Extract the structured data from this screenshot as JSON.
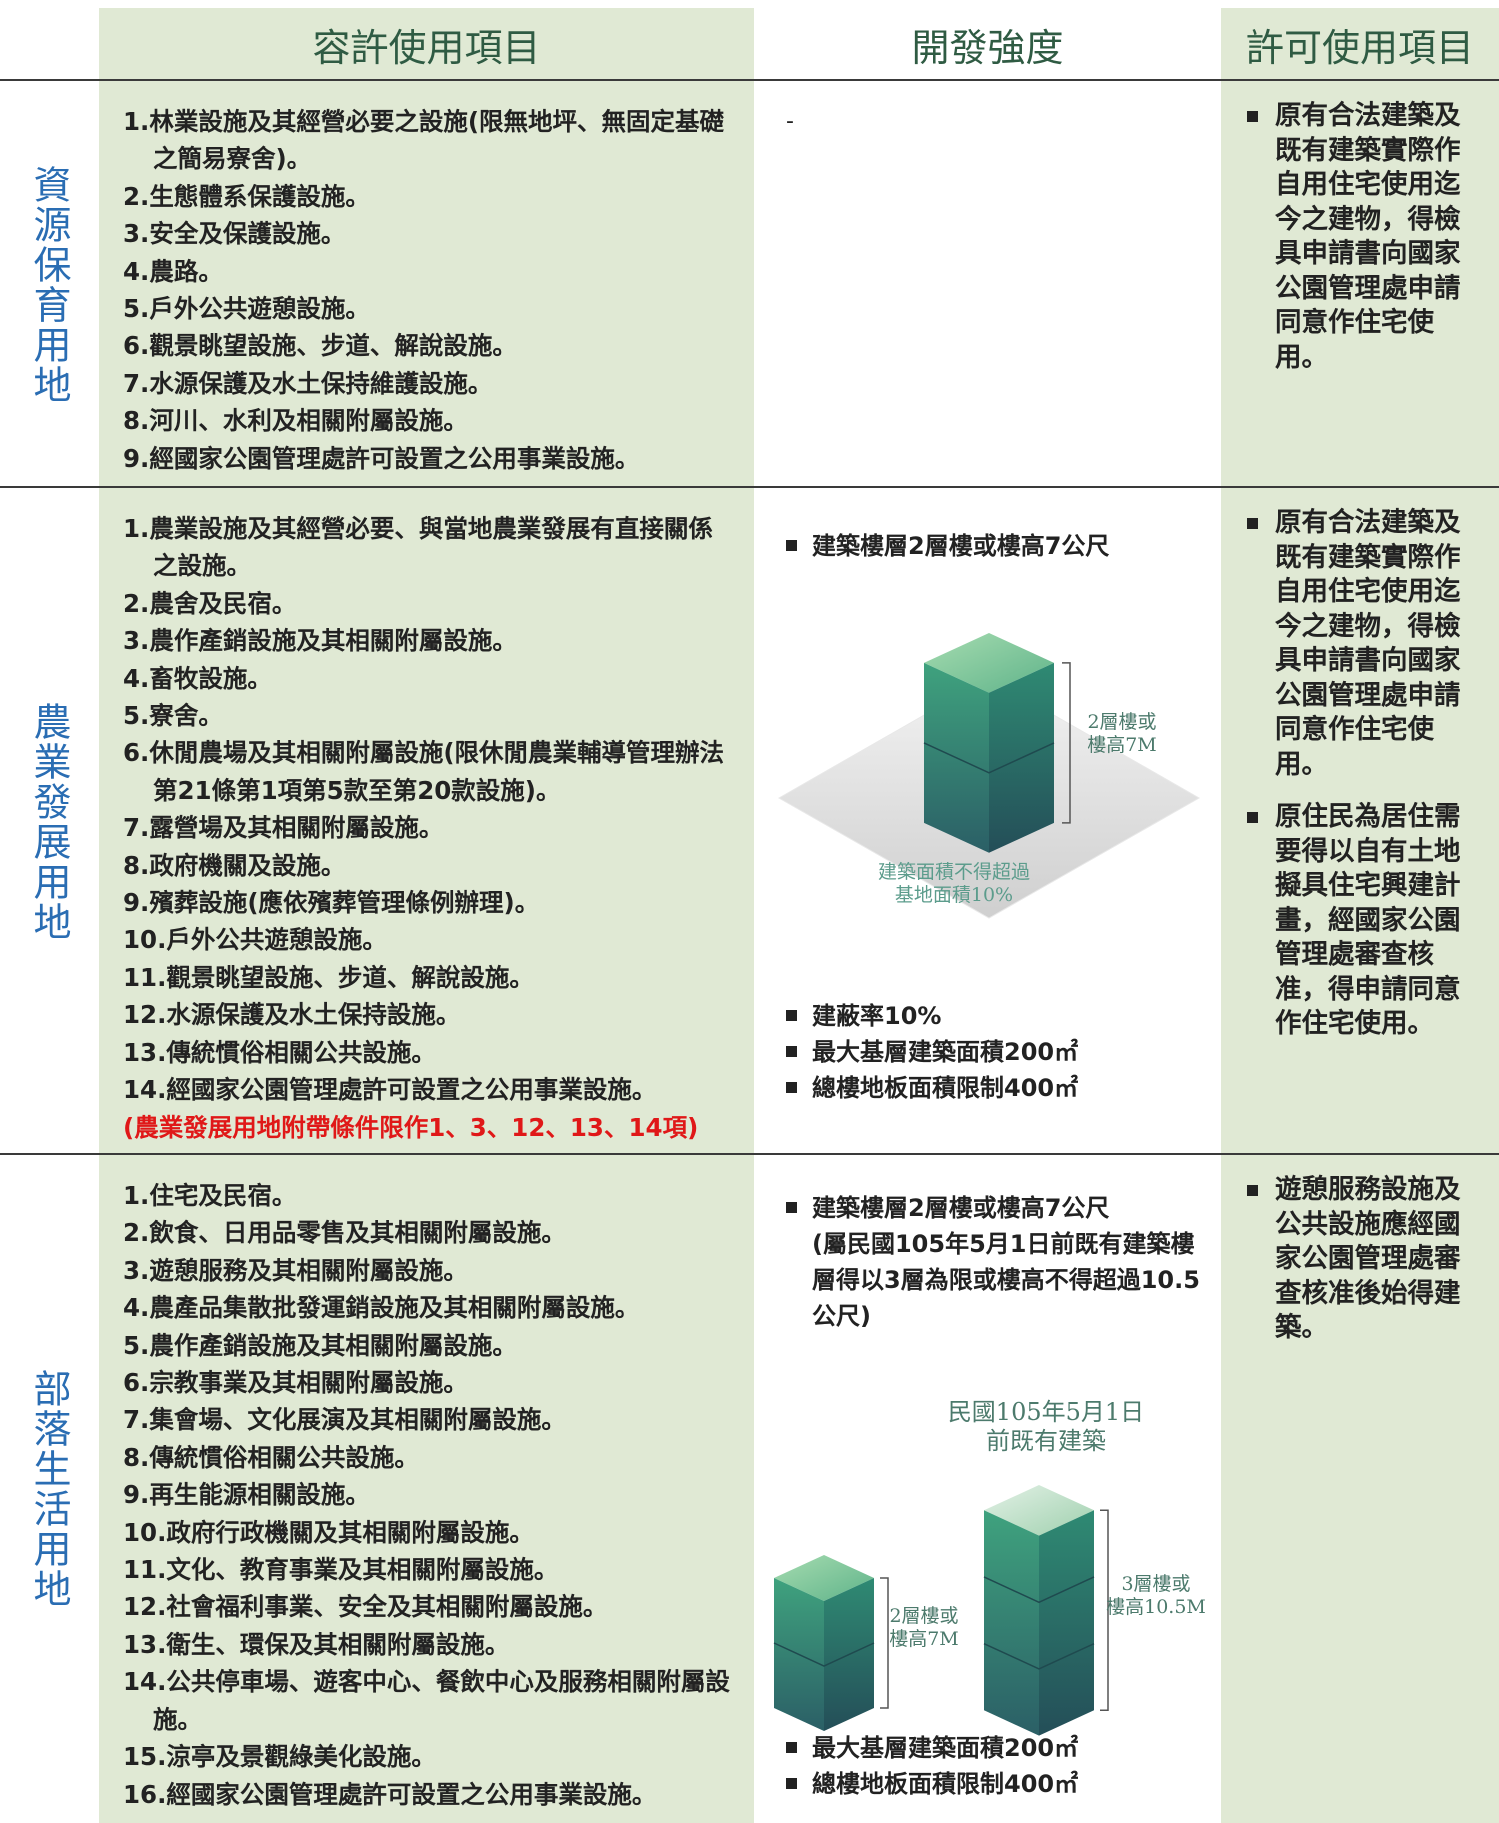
{
  "header": {
    "columns": [
      "容許使用項目",
      "開發強度",
      "許可使用項目"
    ]
  },
  "rows": [
    {
      "label": "資源保育用地",
      "items": [
        "1.林業設施及其經營必要之設施(限無地坪、無固定基礎之簡易寮舍)。",
        "2.生態體系保護設施。",
        "3.安全及保護設施。",
        "4.農路。",
        "5.戶外公共遊憩設施。",
        "6.觀景眺望設施、步道、解說設施。",
        "7.水源保護及水土保持維護設施。",
        "8.河川、水利及相關附屬設施。",
        "9.經國家公園管理處許可設置之公用事業設施。"
      ],
      "intensity": {
        "text": "-"
      },
      "permits": [
        "原有合法建築及既有建築實際作自用住宅使用迄今之建物，得檢具申請書向國家公園管理處申請同意作住宅使用。"
      ]
    },
    {
      "label": "農業發展用地",
      "items": [
        "1.農業設施及其經營必要、與當地農業發展有直接關係之設施。",
        "2.農舍及民宿。",
        "3.農作產銷設施及其相關附屬設施。",
        "4.畜牧設施。",
        "5.寮舍。",
        "6.休閒農場及其相關附屬設施(限休閒農業輔導管理辦法第21條第1項第5款至第20款設施)。",
        "7.露營場及其相關附屬設施。",
        "8.政府機關及設施。",
        "9.殯葬設施(應依殯葬管理條例辦理)。",
        "10.戶外公共遊憩設施。",
        "11.觀景眺望設施、步道、解說設施。",
        "12.水源保護及水土保持設施。",
        "13.傳統慣俗相關公共設施。",
        "14.經國家公園管理處許可設置之公用事業設施。"
      ],
      "note": "(農業發展用地附帶條件限作1、3、12、13、14項)",
      "intensity": {
        "top": [
          "建築樓層2層樓或樓高7公尺"
        ],
        "diagram": {
          "height_label": [
            "2層樓或",
            "樓高7M"
          ],
          "area_label": [
            "建築面積不得超過",
            "基地面積10%"
          ]
        },
        "bottom": [
          "建蔽率10%",
          "最大基層建築面積200㎡",
          "總樓地板面積限制400㎡"
        ]
      },
      "permits": [
        "原有合法建築及既有建築實際作自用住宅使用迄今之建物，得檢具申請書向國家公園管理處申請同意作住宅使用。",
        "原住民為居住需要得以自有土地擬具住宅興建計畫，經國家公園管理處審查核准，得申請同意作住宅使用。"
      ]
    },
    {
      "label": "部落生活用地",
      "items": [
        "1.住宅及民宿。",
        "2.飲食、日用品零售及其相關附屬設施。",
        "3.遊憩服務及其相關附屬設施。",
        "4.農產品集散批發運銷設施及其相關附屬設施。",
        "5.農作產銷設施及其相關附屬設施。",
        "6.宗教事業及其相關附屬設施。",
        "7.集會場、文化展演及其相關附屬設施。",
        "8.傳統慣俗相關公共設施。",
        "9.再生能源相關設施。",
        "10.政府行政機關及其相關附屬設施。",
        "11.文化、教育事業及其相關附屬設施。",
        "12.社會福利事業、安全及其相關附屬設施。",
        "13.衛生、環保及其相關附屬設施。",
        "14.公共停車場、遊客中心、餐飲中心及服務相關附屬設施。",
        "15.涼亭及景觀綠美化設施。",
        "16.經國家公園管理處許可設置之公用事業設施。"
      ],
      "intensity": {
        "top": [
          "建築樓層2層樓或樓高7公尺"
        ],
        "top_note": "(屬民國105年5月1日前既有建築樓層得以3層為限或樓高不得超過10.5公尺)",
        "diagram": {
          "caption": [
            "民國105年5月1日",
            "前既有建築"
          ],
          "small_label": [
            "2層樓或",
            "樓高7M"
          ],
          "large_label": [
            "3層樓或",
            "樓高10.5M"
          ]
        },
        "bottom": [
          "最大基層建築面積200㎡",
          "總樓地板面積限制400㎡"
        ]
      },
      "permits": [
        "遊憩服務設施及公共設施應經國家公園管理處審查核准後始得建築。"
      ]
    }
  ]
}
